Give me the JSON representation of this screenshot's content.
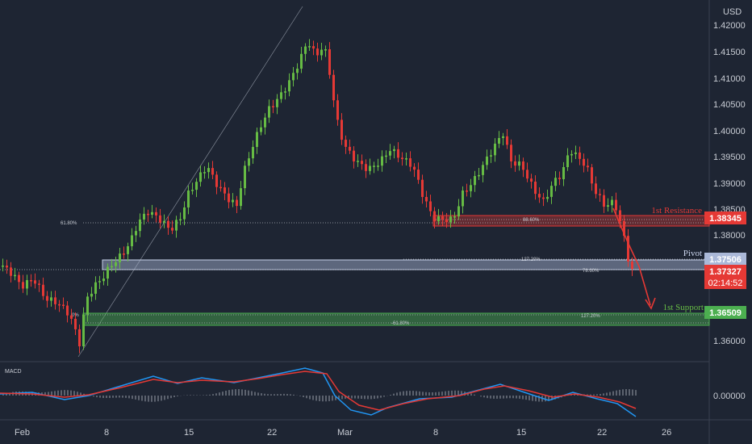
{
  "chart_data": {
    "type": "candlestick",
    "currency": "USD",
    "price_ticks": [
      "1.42000",
      "1.41500",
      "1.41000",
      "1.40500",
      "1.40000",
      "1.39500",
      "1.39000",
      "1.38500",
      "1.38000",
      "1.36000"
    ],
    "date_ticks": [
      "Feb",
      "8",
      "15",
      "22",
      "Mar",
      "8",
      "15",
      "22",
      "26"
    ],
    "annotations": {
      "resistance": {
        "label": "1st Resistance",
        "price": "1.38345"
      },
      "pivot": {
        "label": "Pivot",
        "price": "1.37506"
      },
      "support": {
        "label": "1st Support",
        "price": "1.36509"
      },
      "current": {
        "price": "1.37327",
        "countdown": "02:14:52"
      }
    },
    "fib_labels": [
      "61.80%",
      "88.60%",
      "127.20%",
      "78.60%",
      "0%",
      "-61.80%",
      "127.20%"
    ],
    "macd": {
      "label": "MACD",
      "zero": "0.00000"
    },
    "colors": {
      "up": "#66bb44",
      "down": "#e53935",
      "resistance": "#e53935",
      "pivot": "#aab8d8",
      "support": "#4caf50",
      "macd_line": "#2196f3",
      "signal_line": "#e53935"
    }
  }
}
